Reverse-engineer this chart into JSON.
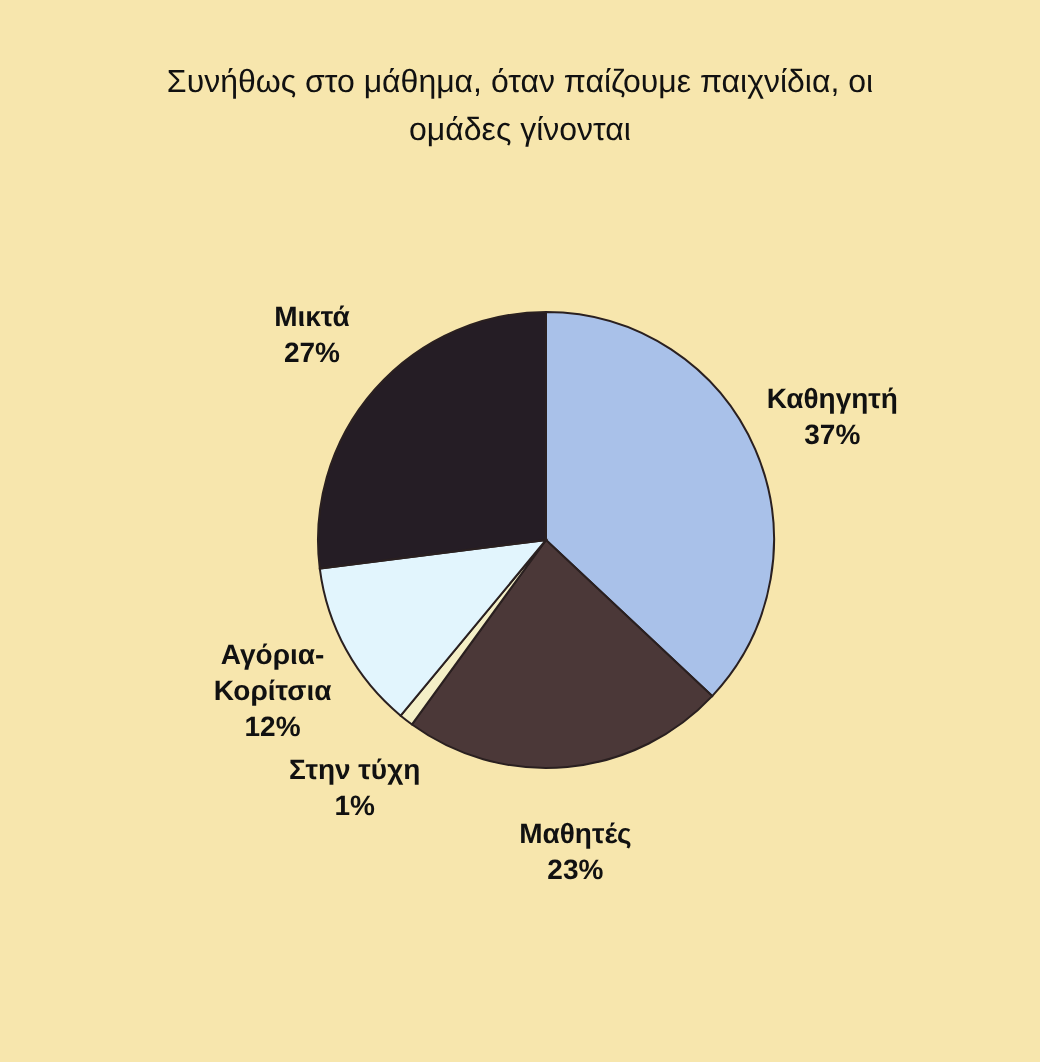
{
  "chart_data": {
    "type": "pie",
    "title": "Συνήθως στο μάθημα, όταν παίζουμε παιχνίδια, οι ομάδες γίνονται",
    "categories": [
      "Καθηγητή",
      "Μαθητές",
      "Στην τύχη",
      "Αγόρια-Κορίτσια",
      "Μικτά"
    ],
    "values": [
      37,
      23,
      1,
      12,
      27
    ],
    "value_labels": [
      "37%",
      "23%",
      "1%",
      "12%",
      "27%"
    ],
    "colors": [
      "#a9c1e9",
      "#4b3838",
      "#f4efc6",
      "#e2f5fd",
      "#251d25"
    ],
    "legend": false
  }
}
